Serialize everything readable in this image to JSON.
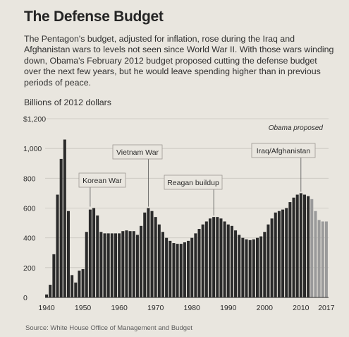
{
  "title": "The Defense Budget",
  "subtitle": "The Pentagon's budget, adjusted for inflation, rose during the Iraq and Afghanistan wars to levels not seen since World War II. With those wars winding down, Obama's February 2012 budget proposed cutting the defense budget over the next few years, but he would leave spending higher than in previous periods of peace.",
  "unit_label": "Billions of 2012 dollars",
  "source": "Source: White House Office of Management and Budget",
  "colors": {
    "actual": "#2a2a2a",
    "proposed": "#9a9a9a",
    "background": "#e9e6df",
    "grid": "#c9c6bf"
  },
  "chart_data": {
    "type": "bar",
    "ylim": [
      0,
      1200
    ],
    "yticks": [
      0,
      200,
      400,
      600,
      800,
      1000,
      1200
    ],
    "ytick_labels": [
      "0",
      "200",
      "400",
      "600",
      "800",
      "1,000",
      "$1,200"
    ],
    "xticks": [
      1940,
      1950,
      1960,
      1970,
      1980,
      1990,
      2000,
      2010,
      2017
    ],
    "xtick_labels": [
      "1940",
      "1950",
      "1960",
      "1970",
      "1980",
      "1990",
      "2000",
      "2010",
      "2017"
    ],
    "grid": true,
    "proposed_label": "Obama proposed",
    "proposed_from_year": 2013,
    "years": [
      1940,
      1941,
      1942,
      1943,
      1944,
      1945,
      1946,
      1947,
      1948,
      1949,
      1950,
      1951,
      1952,
      1953,
      1954,
      1955,
      1956,
      1957,
      1958,
      1959,
      1960,
      1961,
      1962,
      1963,
      1964,
      1965,
      1966,
      1967,
      1968,
      1969,
      1970,
      1971,
      1972,
      1973,
      1974,
      1975,
      1976,
      1977,
      1978,
      1979,
      1980,
      1981,
      1982,
      1983,
      1984,
      1985,
      1986,
      1987,
      1988,
      1989,
      1990,
      1991,
      1992,
      1993,
      1994,
      1995,
      1996,
      1997,
      1998,
      1999,
      2000,
      2001,
      2002,
      2003,
      2004,
      2005,
      2006,
      2007,
      2008,
      2009,
      2010,
      2011,
      2012,
      2013,
      2014,
      2015,
      2016,
      2017
    ],
    "values": [
      20,
      85,
      290,
      690,
      930,
      1060,
      580,
      150,
      100,
      180,
      190,
      440,
      590,
      600,
      550,
      440,
      430,
      430,
      430,
      430,
      430,
      445,
      450,
      445,
      445,
      420,
      480,
      570,
      600,
      580,
      540,
      490,
      440,
      400,
      380,
      365,
      360,
      360,
      370,
      380,
      400,
      430,
      460,
      490,
      510,
      530,
      540,
      540,
      530,
      510,
      490,
      480,
      450,
      420,
      400,
      390,
      385,
      390,
      400,
      410,
      440,
      490,
      530,
      570,
      580,
      590,
      600,
      640,
      670,
      690,
      700,
      690,
      680,
      660,
      580,
      520,
      510,
      510
    ],
    "annotations": [
      {
        "label": "Korean War",
        "year": 1952,
        "value": 600
      },
      {
        "label": "Vietnam War",
        "year": 1968,
        "value": 600
      },
      {
        "label": "Reagan buildup",
        "year": 1986,
        "value": 540
      },
      {
        "label": "Iraq/Afghanistan",
        "year": 2010,
        "value": 700
      }
    ]
  }
}
